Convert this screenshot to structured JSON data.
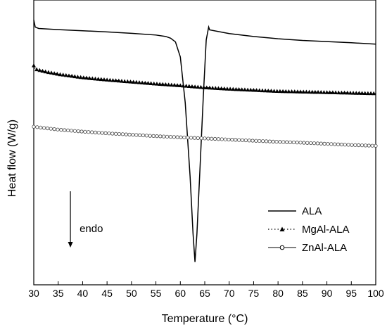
{
  "chart_data": {
    "type": "line",
    "xlabel": "Temperature (°C)",
    "ylabel": "Heat flow (W/g)",
    "xlim": [
      30,
      100
    ],
    "x_ticks": [
      "30",
      "35",
      "40",
      "45",
      "50",
      "55",
      "60",
      "65",
      "70",
      "75",
      "80",
      "85",
      "90",
      "95",
      "100"
    ],
    "y_ticks_visible": false,
    "ylim": [
      0,
      1
    ],
    "grid": false,
    "legend_position": "bottom-right",
    "annotations": [
      {
        "text": "endo",
        "arrow": "down",
        "x": 37.5,
        "y_from": 0.55,
        "y_to": 0.15
      }
    ],
    "series": [
      {
        "name": "ALA",
        "style": "solid",
        "marker": "none",
        "color": "#000000",
        "points": [
          [
            30,
            0.93
          ],
          [
            30.3,
            0.905
          ],
          [
            31,
            0.9
          ],
          [
            35,
            0.896
          ],
          [
            40,
            0.892
          ],
          [
            45,
            0.888
          ],
          [
            50,
            0.883
          ],
          [
            55,
            0.877
          ],
          [
            57,
            0.872
          ],
          [
            58,
            0.866
          ],
          [
            59,
            0.853
          ],
          [
            60,
            0.8
          ],
          [
            61,
            0.64
          ],
          [
            62,
            0.38
          ],
          [
            62.6,
            0.18
          ],
          [
            63,
            0.08
          ],
          [
            63.4,
            0.18
          ],
          [
            64,
            0.4
          ],
          [
            64.7,
            0.66
          ],
          [
            65.3,
            0.86
          ],
          [
            65.8,
            0.905
          ],
          [
            66,
            0.895
          ],
          [
            70,
            0.882
          ],
          [
            75,
            0.872
          ],
          [
            80,
            0.864
          ],
          [
            85,
            0.858
          ],
          [
            90,
            0.854
          ],
          [
            95,
            0.85
          ],
          [
            100,
            0.845
          ]
        ]
      },
      {
        "name": "MgAl-ALA",
        "style": "dotted",
        "marker": "triangle",
        "color": "#000000",
        "points": [
          [
            30,
            0.77
          ],
          [
            30.3,
            0.758
          ],
          [
            32,
            0.75
          ],
          [
            35,
            0.74
          ],
          [
            40,
            0.728
          ],
          [
            45,
            0.72
          ],
          [
            50,
            0.713
          ],
          [
            55,
            0.706
          ],
          [
            60,
            0.7
          ],
          [
            65,
            0.693
          ],
          [
            70,
            0.688
          ],
          [
            75,
            0.684
          ],
          [
            80,
            0.68
          ],
          [
            85,
            0.678
          ],
          [
            90,
            0.676
          ],
          [
            95,
            0.674
          ],
          [
            100,
            0.672
          ]
        ]
      },
      {
        "name": "ZnAl-ALA",
        "style": "solid",
        "marker": "circle-open",
        "color": "#000000",
        "points": [
          [
            30,
            0.555
          ],
          [
            35,
            0.545
          ],
          [
            40,
            0.538
          ],
          [
            45,
            0.532
          ],
          [
            50,
            0.527
          ],
          [
            55,
            0.522
          ],
          [
            60,
            0.518
          ],
          [
            65,
            0.514
          ],
          [
            70,
            0.51
          ],
          [
            75,
            0.506
          ],
          [
            80,
            0.502
          ],
          [
            85,
            0.499
          ],
          [
            90,
            0.495
          ],
          [
            95,
            0.491
          ],
          [
            100,
            0.488
          ]
        ]
      }
    ]
  }
}
